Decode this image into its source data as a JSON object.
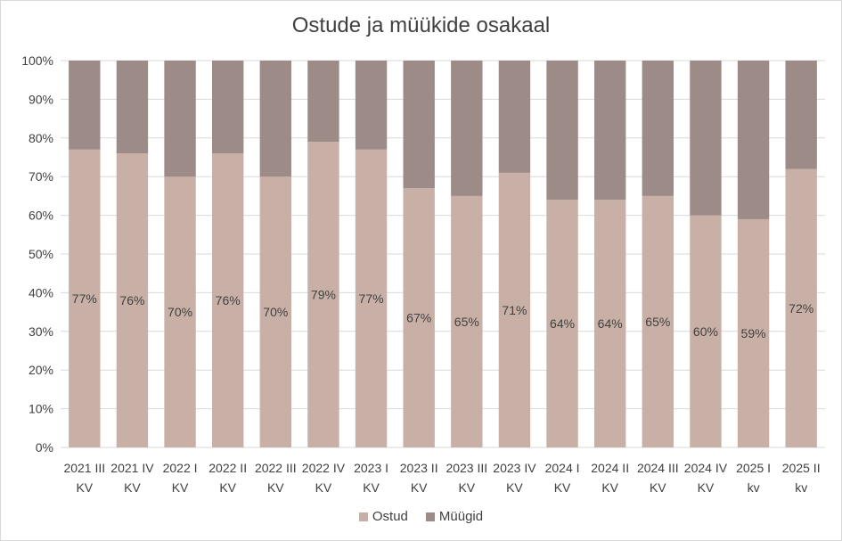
{
  "chart_data": {
    "type": "bar",
    "stacked": true,
    "title": "Ostude ja müükide osakaal",
    "xlabel": "",
    "ylabel": "",
    "ylim": [
      0,
      100
    ],
    "yticks": [
      "0%",
      "10%",
      "20%",
      "30%",
      "40%",
      "50%",
      "60%",
      "70%",
      "80%",
      "90%",
      "100%"
    ],
    "categories": [
      [
        "2021 III",
        "KV"
      ],
      [
        "2021 IV",
        "KV"
      ],
      [
        "2022 I",
        "KV"
      ],
      [
        "2022 II",
        "KV"
      ],
      [
        "2022 III",
        "KV"
      ],
      [
        "2022 IV",
        "KV"
      ],
      [
        "2023 I",
        "KV"
      ],
      [
        "2023 II",
        "KV"
      ],
      [
        "2023 III",
        "KV"
      ],
      [
        "2023 IV",
        "KV"
      ],
      [
        "2024 I",
        "KV"
      ],
      [
        "2024 II",
        "KV"
      ],
      [
        "2024 III",
        "KV"
      ],
      [
        "2024 IV",
        "KV"
      ],
      [
        "2025 I",
        "kv"
      ],
      [
        "2025 II",
        "kv"
      ]
    ],
    "series": [
      {
        "name": "Ostud",
        "color": "#c9b0a6",
        "values": [
          77,
          76,
          70,
          76,
          70,
          79,
          77,
          67,
          65,
          71,
          64,
          64,
          65,
          60,
          59,
          72
        ],
        "labels": [
          "77%",
          "76%",
          "70%",
          "76%",
          "70%",
          "79%",
          "77%",
          "67%",
          "65%",
          "71%",
          "64%",
          "64%",
          "65%",
          "60%",
          "59%",
          "72%"
        ]
      },
      {
        "name": "Müügid",
        "color": "#9d8b88",
        "values": [
          23,
          24,
          30,
          24,
          30,
          21,
          23,
          33,
          35,
          29,
          36,
          36,
          35,
          40,
          41,
          28
        ]
      }
    ],
    "grid": true,
    "legend_position": "bottom"
  }
}
